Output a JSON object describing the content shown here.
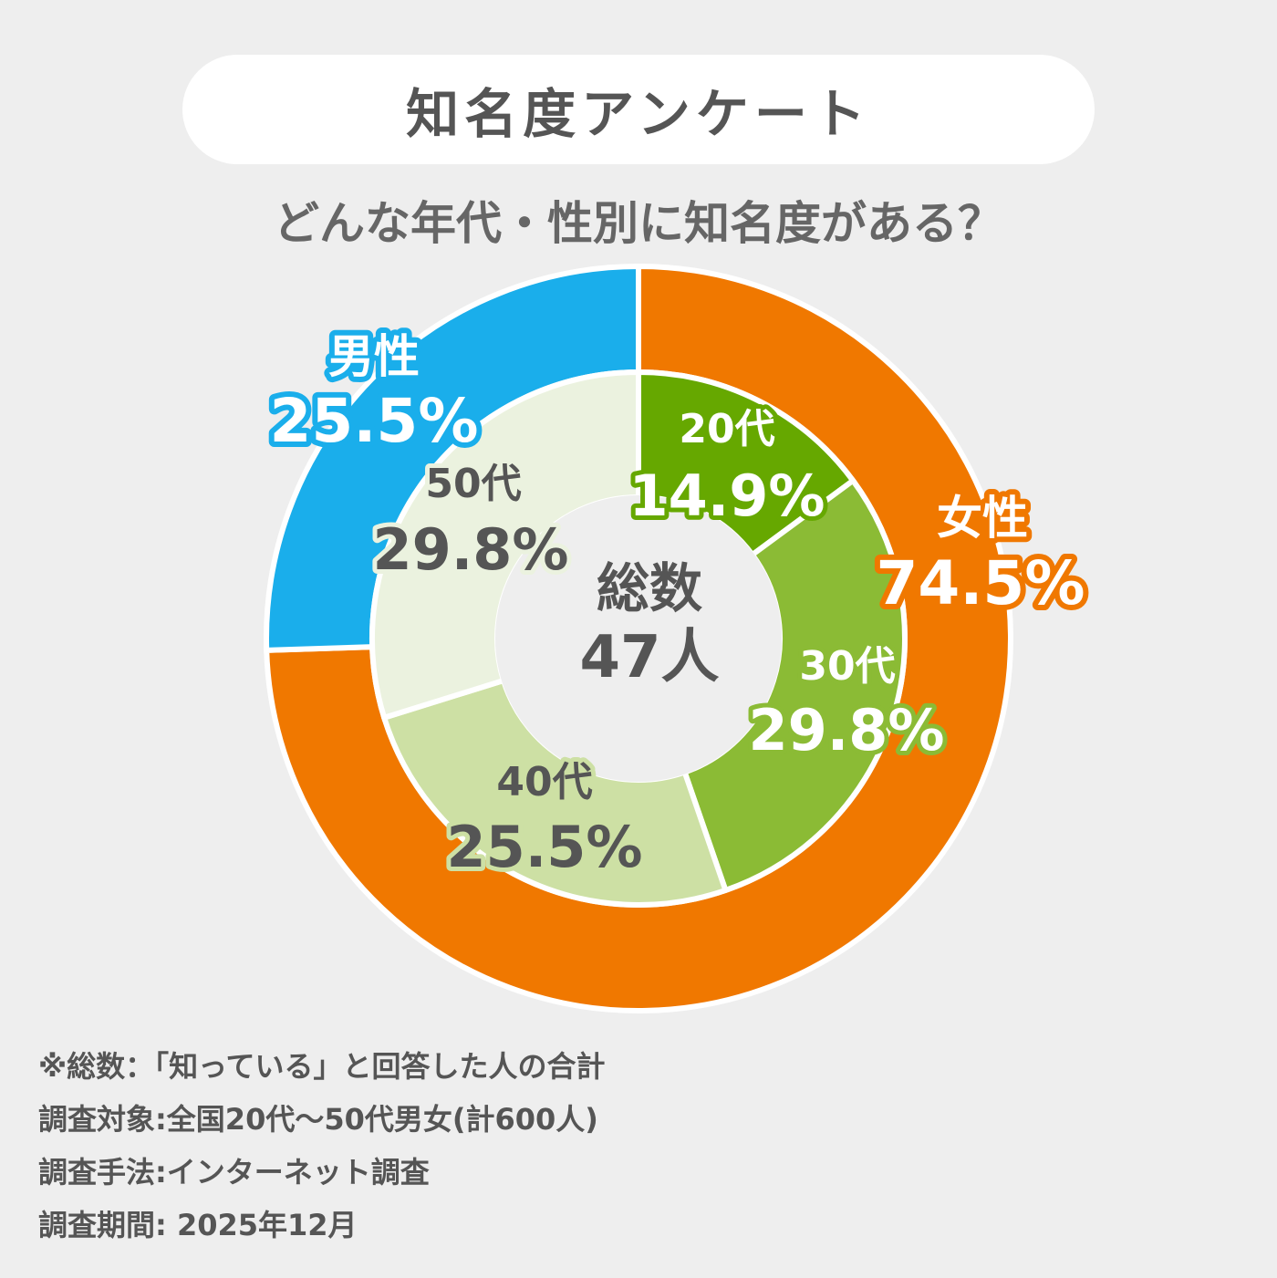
{
  "header": {
    "title": "知名度アンケート"
  },
  "subtitle": "どんな年代・性別に知名度がある？",
  "center": {
    "line1": "総数",
    "line2": "47人"
  },
  "notes": [
    "※総数：「知っている」と回答した人の合計",
    "調査対象:全国20代～50代男女(計600人)",
    "調査手法:インターネット調査",
    "調査期間: 2025年12月"
  ],
  "chart_data": [
    {
      "type": "pie",
      "ring": "outer",
      "categories": [
        "女性",
        "男性"
      ],
      "values": [
        74.5,
        25.5
      ],
      "labels": [
        "74.5%",
        "25.5%"
      ],
      "colors": [
        "#f07800",
        "#1aaeeb"
      ]
    },
    {
      "type": "pie",
      "ring": "inner",
      "categories": [
        "20代",
        "30代",
        "40代",
        "50代"
      ],
      "values": [
        14.9,
        29.8,
        25.5,
        29.8
      ],
      "labels": [
        "14.9%",
        "29.8%",
        "25.5%",
        "29.8%"
      ],
      "colors": [
        "#66a800",
        "#8bbb35",
        "#cde0a4",
        "#ebf2df"
      ]
    }
  ]
}
